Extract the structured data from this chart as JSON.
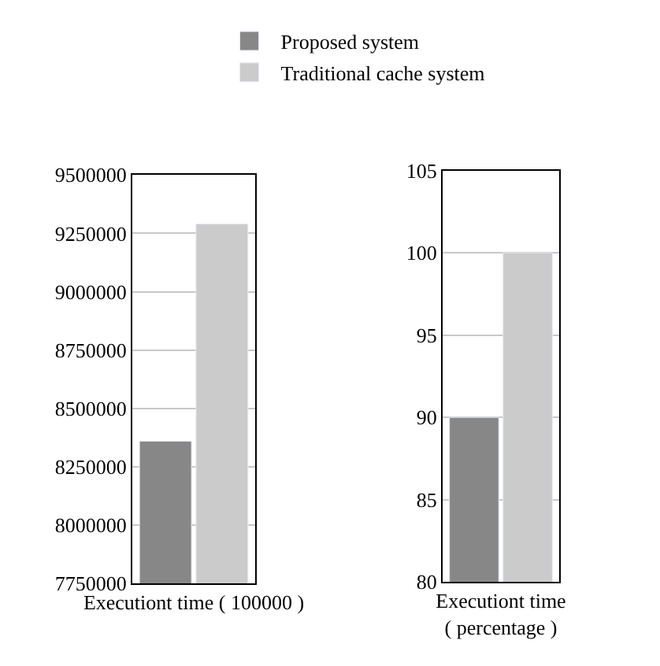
{
  "chart_data": [
    {
      "type": "bar",
      "categories": [
        null
      ],
      "xlabel": "Executiont time ( 100000 )",
      "legend": "top",
      "grid": "y",
      "series": [
        {
          "name": "Proposed system",
          "color": "#878787",
          "values": [
            8360000
          ]
        },
        {
          "name": "Traditional cache system",
          "color": "#cbcbcb",
          "values": [
            9290000
          ]
        }
      ],
      "ylim": [
        7750000,
        9500000
      ],
      "yticks": [
        7750000,
        8000000,
        8250000,
        8500000,
        8750000,
        9000000,
        9250000,
        9500000
      ]
    },
    {
      "type": "bar",
      "categories": [
        null
      ],
      "xlabel": "Executiont time\n( percentage )",
      "grid": "y",
      "series": [
        {
          "color": "#878787",
          "values": [
            90
          ]
        },
        {
          "color": "#cbcbcb",
          "values": [
            100
          ]
        }
      ],
      "ylim": [
        80,
        105
      ],
      "yticks": [
        80,
        85,
        90,
        95,
        100,
        105
      ]
    }
  ]
}
